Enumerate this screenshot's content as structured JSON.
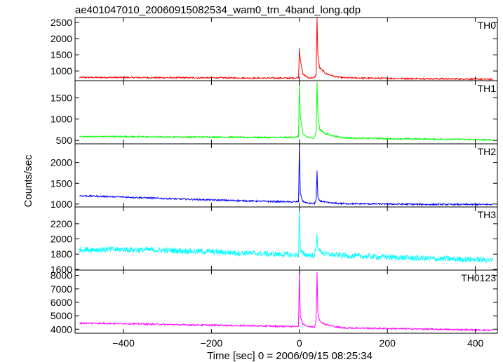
{
  "chart_data": {
    "type": "line",
    "title": "ae401047010_20060915082534_wam0_trn_4band_long.qdp",
    "xlabel": "Time [sec] 0 = 2006/09/15 08:25:34",
    "ylabel": "Counts/sec",
    "xlim": [
      -510,
      450
    ],
    "xticks": [
      -400,
      -200,
      0,
      200,
      400
    ],
    "grid": false,
    "panels": [
      {
        "name": "TH0",
        "color": "#ff0000",
        "ylim": [
          700,
          2650
        ],
        "yticks": [
          1000,
          1500,
          2000,
          2500
        ],
        "series": [
          {
            "x": [
              -500,
              -400,
              -300,
              -200,
              -100,
              -10,
              -2,
              0,
              2,
              8,
              20,
              34,
              38,
              40,
              42,
              46,
              60,
              80,
              100,
              200,
              300,
              400,
              440
            ],
            "values": [
              800,
              800,
              790,
              790,
              780,
              780,
              800,
              1700,
              1350,
              900,
              790,
              790,
              900,
              2650,
              1500,
              1100,
              920,
              830,
              790,
              770,
              760,
              750,
              740
            ]
          }
        ]
      },
      {
        "name": "TH1",
        "color": "#00ff00",
        "ylim": [
          420,
          1900
        ],
        "yticks": [
          500,
          1000,
          1500
        ],
        "series": [
          {
            "x": [
              -500,
              -400,
              -300,
              -200,
              -100,
              -10,
              -2,
              0,
              2,
              8,
              20,
              34,
              38,
              40,
              42,
              46,
              60,
              80,
              100,
              200,
              300,
              400,
              440
            ],
            "values": [
              590,
              590,
              580,
              580,
              570,
              570,
              600,
              1870,
              1050,
              640,
              570,
              560,
              700,
              1880,
              1100,
              760,
              650,
              600,
              560,
              540,
              530,
              520,
              510
            ]
          }
        ]
      },
      {
        "name": "TH2",
        "color": "#0000ff",
        "ylim": [
          930,
          2450
        ],
        "yticks": [
          1000,
          1500,
          2000
        ],
        "series": [
          {
            "x": [
              -500,
              -400,
              -300,
              -200,
              -100,
              -10,
              -2,
              0,
              2,
              8,
              20,
              34,
              38,
              40,
              42,
              46,
              60,
              80,
              100,
              200,
              300,
              400,
              440
            ],
            "values": [
              1200,
              1170,
              1130,
              1100,
              1070,
              1050,
              1060,
              2450,
              1250,
              1060,
              1020,
              1010,
              1100,
              1800,
              1150,
              1080,
              1040,
              1020,
              1010,
              1000,
              990,
              990,
              990
            ]
          }
        ]
      },
      {
        "name": "TH3",
        "color": "#00ffff",
        "ylim": [
          1590,
          2420
        ],
        "yticks": [
          1600,
          1800,
          2000,
          2200
        ],
        "series": [
          {
            "x": [
              -500,
              -400,
              -300,
              -200,
              -100,
              -10,
              -2,
              0,
              2,
              8,
              20,
              34,
              38,
              40,
              42,
              46,
              60,
              80,
              100,
              200,
              300,
              400,
              440
            ],
            "values": [
              1860,
              1860,
              1850,
              1830,
              1810,
              1790,
              1790,
              2410,
              1850,
              1800,
              1790,
              1780,
              1880,
              2050,
              1900,
              1840,
              1800,
              1790,
              1780,
              1760,
              1740,
              1730,
              1720
            ]
          }
        ]
      },
      {
        "name": "TH0123",
        "color": "#ff00ff",
        "ylim": [
          3700,
          8400
        ],
        "yticks": [
          4000,
          5000,
          6000,
          7000,
          8000
        ],
        "series": [
          {
            "x": [
              -500,
              -400,
              -300,
              -200,
              -100,
              -10,
              -2,
              0,
              2,
              8,
              20,
              34,
              38,
              40,
              42,
              46,
              60,
              80,
              100,
              200,
              300,
              400,
              440
            ],
            "values": [
              4450,
              4420,
              4350,
              4300,
              4250,
              4200,
              4250,
              8400,
              4900,
              4400,
              4200,
              4150,
              4700,
              8300,
              5300,
              4600,
              4350,
              4200,
              4100,
              4050,
              4000,
              3950,
              3930
            ]
          }
        ]
      }
    ]
  }
}
